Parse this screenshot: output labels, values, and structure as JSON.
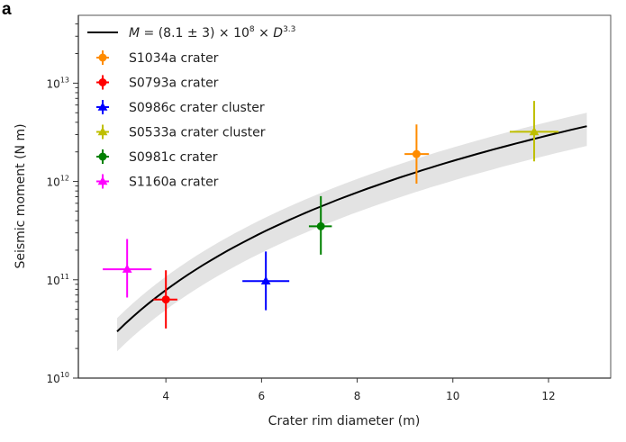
{
  "panel_label": "a",
  "chart_data": {
    "type": "scatter",
    "xlabel": "Crater rim diameter (m)",
    "ylabel": "Seismic moment (N m)",
    "xlim": [
      2.17,
      13.3
    ],
    "ylim": [
      10000000000.0,
      49000000000000.0
    ],
    "yscale": "log",
    "x_ticks": [
      4,
      6,
      8,
      10,
      12
    ],
    "x_tick_labels": [
      "4",
      "6",
      "8",
      "10",
      "12"
    ],
    "y_ticks": [
      10,
      11,
      12,
      13
    ],
    "y_tick_labels": [
      {
        "base": "10",
        "exp": "10"
      },
      {
        "base": "10",
        "exp": "11"
      },
      {
        "base": "10",
        "exp": "12"
      },
      {
        "base": "10",
        "exp": "13"
      }
    ],
    "legend_position": "top-left",
    "fit": {
      "label_parts": {
        "var": "M",
        "eq": " = (8.1 ± 3) × 10",
        "exp1": "8",
        "times": " × ",
        "var2": "D",
        "exp2": "3.3"
      },
      "coefficient": 810000000.0,
      "coefficient_uncertainty": 300000000.0,
      "exponent": 3.3,
      "x_range": [
        2.98,
        12.8
      ],
      "color": "#000000",
      "band_color": "#e3e3e3"
    },
    "series": [
      {
        "name": "S1034a crater",
        "marker": "circle",
        "color": "#ff8c00",
        "x": 9.24,
        "y": 1900000000000.0,
        "xerr": [
          8.99,
          9.5
        ],
        "yerr": [
          950000000000.0,
          3800000000000.0
        ]
      },
      {
        "name": "S0793a crater",
        "marker": "circle",
        "color": "#ff0000",
        "x": 4.0,
        "y": 63000000000.0,
        "xerr": [
          3.74,
          4.24
        ],
        "yerr": [
          32000000000.0,
          125000000000.0
        ]
      },
      {
        "name": "S0986c crater cluster",
        "marker": "triangle",
        "color": "#0000ff",
        "x": 6.09,
        "y": 97000000000.0,
        "xerr": [
          5.6,
          6.58
        ],
        "yerr": [
          49000000000.0,
          194000000000.0
        ]
      },
      {
        "name": "S0533a crater cluster",
        "marker": "triangle",
        "color": "#bfbf00",
        "x": 11.7,
        "y": 3200000000000.0,
        "xerr": [
          11.19,
          12.21
        ],
        "yerr": [
          1600000000000.0,
          6600000000000.0
        ]
      },
      {
        "name": "S0981c crater",
        "marker": "circle",
        "color": "#008000",
        "x": 7.24,
        "y": 350000000000.0,
        "xerr": [
          6.99,
          7.47
        ],
        "yerr": [
          180000000000.0,
          710000000000.0
        ]
      },
      {
        "name": "S1160a crater",
        "marker": "triangle",
        "color": "#ff00ff",
        "x": 3.19,
        "y": 128000000000.0,
        "xerr": [
          2.68,
          3.7
        ],
        "yerr": [
          66000000000.0,
          260000000000.0
        ]
      }
    ]
  }
}
